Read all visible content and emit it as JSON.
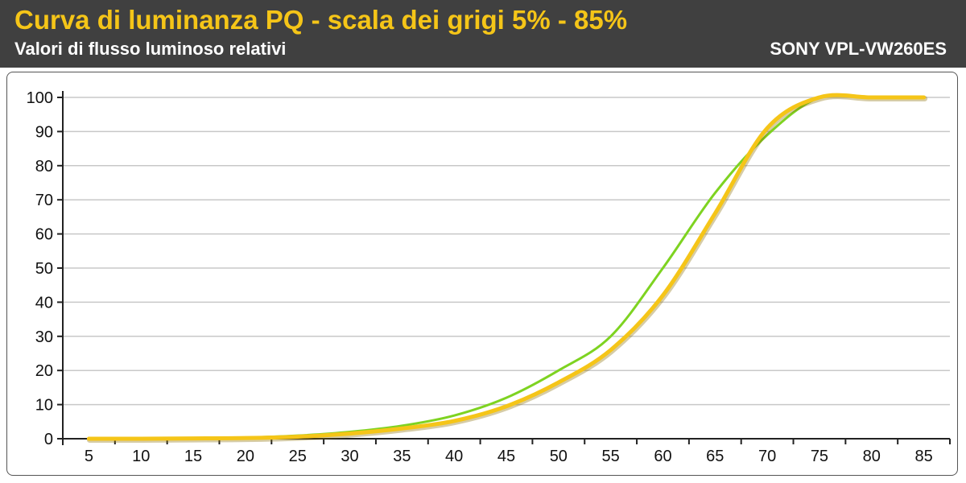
{
  "header": {
    "title": "Curva di luminanza PQ - scala dei grigi 5% - 85%",
    "subtitle": "Valori di flusso luminoso relativi",
    "model": "SONY VPL-VW260ES"
  },
  "chart_data": {
    "type": "line",
    "title": "Curva di luminanza PQ - scala dei grigi 5% - 85%",
    "subtitle": "Valori di flusso luminoso relativi",
    "xlabel": "",
    "ylabel": "",
    "xlim": [
      5,
      85
    ],
    "ylim": [
      0,
      100
    ],
    "x_ticks": [
      5,
      10,
      15,
      20,
      25,
      30,
      35,
      40,
      45,
      50,
      55,
      60,
      65,
      70,
      75,
      80,
      85
    ],
    "y_ticks": [
      0,
      10,
      20,
      30,
      40,
      50,
      60,
      70,
      80,
      90,
      100
    ],
    "grid": true,
    "legend": "none",
    "x": [
      5,
      10,
      15,
      20,
      25,
      30,
      35,
      40,
      45,
      50,
      55,
      60,
      65,
      70,
      75,
      80,
      85
    ],
    "series": [
      {
        "color": "#7ed321",
        "values": [
          0,
          0,
          0.1,
          0.3,
          0.9,
          2,
          3.8,
          6.8,
          12,
          20,
          30,
          50,
          72,
          89,
          100,
          100,
          100
        ]
      },
      {
        "color": "#f5c518",
        "values": [
          0,
          0,
          0.1,
          0.2,
          0.6,
          1.5,
          3,
          5.2,
          9.5,
          16.5,
          26,
          42,
          66,
          91,
          100,
          100,
          100
        ]
      }
    ]
  }
}
